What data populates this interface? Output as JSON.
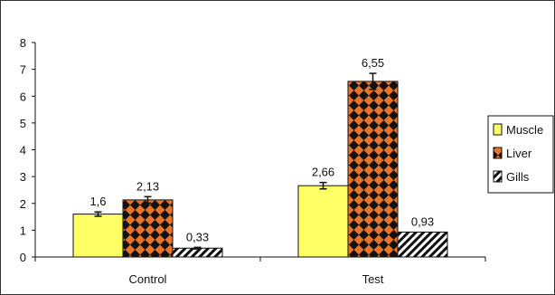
{
  "chart_data": {
    "type": "bar",
    "categories": [
      "Control",
      "Test"
    ],
    "series": [
      {
        "name": "Muscle",
        "values": [
          1.6,
          2.66
        ],
        "labels": [
          "1,6",
          "2,66"
        ],
        "errors": [
          0.08,
          0.12
        ],
        "color": "#ffff66",
        "pattern": "solid"
      },
      {
        "name": "Liver",
        "values": [
          2.13,
          6.55
        ],
        "labels": [
          "2,13",
          "6,55"
        ],
        "errors": [
          0.12,
          0.3
        ],
        "color": "#e8732a",
        "pattern": "diamond-checker"
      },
      {
        "name": "Gills",
        "values": [
          0.33,
          0.93
        ],
        "labels": [
          "0,33",
          "0,93"
        ],
        "errors": [
          0.03,
          0.0
        ],
        "color": "#ffffff",
        "pattern": "diagonal-hatch"
      }
    ],
    "ylim": [
      0,
      8
    ],
    "yticks": [
      "0",
      "1",
      "2",
      "3",
      "4",
      "5",
      "6",
      "7",
      "8"
    ],
    "title": "",
    "xlabel": "",
    "ylabel": "",
    "grid": false,
    "legend": "right"
  }
}
